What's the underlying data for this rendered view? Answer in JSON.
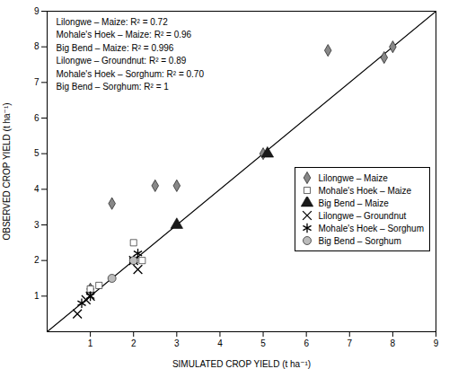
{
  "chart_data": {
    "type": "scatter",
    "xlabel": "SIMULATED CROP YIELD (t ha⁻¹)",
    "ylabel": "OBSERVED CROP YIELD (t ha⁻¹)",
    "annotations": [
      "Lilongwe – Maize: R² = 0.72",
      "Mohale's Hoek – Maize: R² = 0.96",
      "Big Bend – Maize: R² = 0.996",
      "Lilongwe – Groundnut: R² = 0.89",
      "Mohale's Hoek – Sorghum: R² = 0.70",
      "Big Bend – Sorghum: R² = 1"
    ],
    "xlim": [
      0,
      9
    ],
    "ylim": [
      0,
      9
    ],
    "xticks": [
      1,
      2,
      3,
      4,
      5,
      6,
      7,
      8,
      9
    ],
    "yticks": [
      1,
      2,
      3,
      4,
      5,
      6,
      7,
      8,
      9
    ],
    "grid": false,
    "legend": "center right",
    "series": [
      {
        "name": "Lilongwe – Maize",
        "color": "#888888",
        "marker": "diamond",
        "x": [
          1.0,
          1.5,
          2.5,
          3.0,
          5.0,
          6.5,
          7.8,
          8.0
        ],
        "values": [
          1.2,
          3.6,
          4.1,
          4.1,
          5.0,
          7.9,
          7.7,
          8.0
        ]
      },
      {
        "name": "Mohale's Hoek – Maize",
        "color": "white",
        "marker": "square",
        "x": [
          1.0,
          1.2,
          2.0,
          2.2
        ],
        "values": [
          1.2,
          1.3,
          2.5,
          2.0
        ]
      },
      {
        "name": "Big Bend – Maize",
        "color": "#1a1a1a",
        "marker": "triangle",
        "x": [
          3.0,
          5.1
        ],
        "values": [
          3.0,
          5.0
        ]
      },
      {
        "name": "Lilongwe – Groundnut",
        "color": "black",
        "marker": "x",
        "x": [
          0.7,
          0.9,
          1.0,
          2.0,
          2.1
        ],
        "values": [
          0.5,
          0.9,
          1.0,
          2.0,
          1.75
        ]
      },
      {
        "name": "Mohale's Hoek – Sorghum",
        "color": "black",
        "marker": "asterisk",
        "x": [
          0.8,
          1.0,
          2.0,
          2.1
        ],
        "values": [
          0.8,
          1.0,
          2.0,
          2.2
        ]
      },
      {
        "name": "Big Bend – Sorghum",
        "color": "#bbbbbb",
        "marker": "circle",
        "x": [
          1.5,
          2.0
        ],
        "values": [
          1.5,
          2.0
        ]
      }
    ]
  }
}
